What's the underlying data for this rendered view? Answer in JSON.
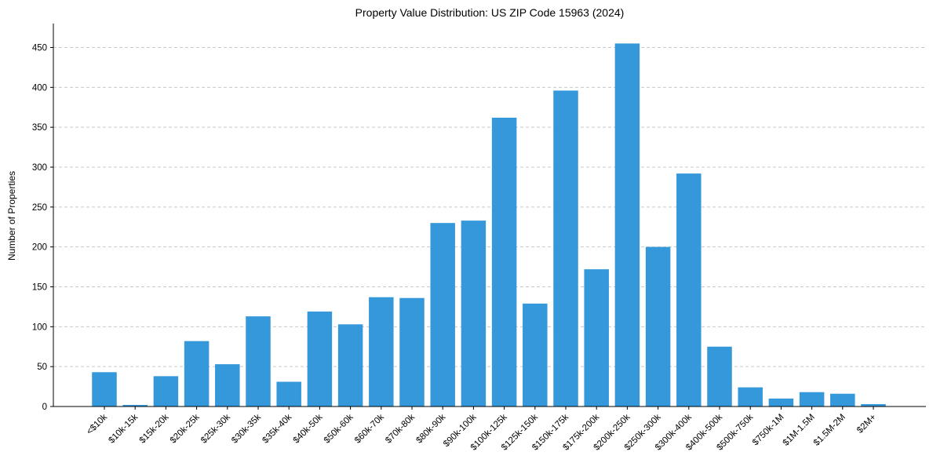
{
  "chart_data": {
    "type": "bar",
    "title": "Property Value Distribution: US ZIP Code 15963 (2024)",
    "xlabel": "",
    "ylabel": "Number of Properties",
    "ylim": [
      0,
      480
    ],
    "yticks": [
      0,
      50,
      100,
      150,
      200,
      250,
      300,
      350,
      400,
      450
    ],
    "grid": "y-dashed",
    "bar_color": "#3498db",
    "categories": [
      "<$10k",
      "$10k-15k",
      "$15k-20k",
      "$20k-25k",
      "$25k-30k",
      "$30k-35k",
      "$35k-40k",
      "$40k-50k",
      "$50k-60k",
      "$60k-70k",
      "$70k-80k",
      "$80k-90k",
      "$90k-100k",
      "$100k-125k",
      "$125k-150k",
      "$150k-175k",
      "$175k-200k",
      "$200k-250k",
      "$250k-300k",
      "$300k-400k",
      "$400k-500k",
      "$500k-750k",
      "$750k-1M",
      "$1M-1.5M",
      "$1.5M-2M",
      "$2M+"
    ],
    "values": [
      43,
      2,
      38,
      82,
      53,
      113,
      31,
      119,
      103,
      137,
      136,
      230,
      233,
      362,
      129,
      396,
      172,
      455,
      200,
      292,
      75,
      24,
      10,
      18,
      16,
      3
    ]
  }
}
